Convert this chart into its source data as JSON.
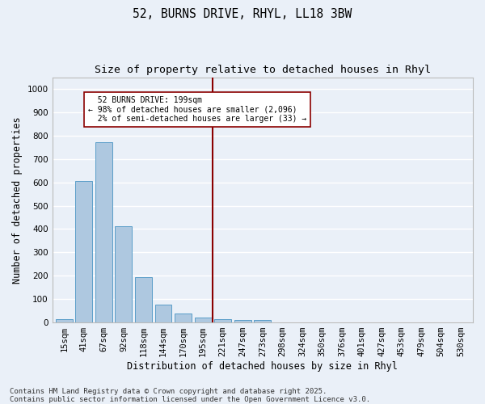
{
  "title_line1": "52, BURNS DRIVE, RHYL, LL18 3BW",
  "title_line2": "Size of property relative to detached houses in Rhyl",
  "xlabel": "Distribution of detached houses by size in Rhyl",
  "ylabel": "Number of detached properties",
  "bar_labels": [
    "15sqm",
    "41sqm",
    "67sqm",
    "92sqm",
    "118sqm",
    "144sqm",
    "170sqm",
    "195sqm",
    "221sqm",
    "247sqm",
    "273sqm",
    "298sqm",
    "324sqm",
    "350sqm",
    "376sqm",
    "401sqm",
    "427sqm",
    "453sqm",
    "479sqm",
    "504sqm",
    "530sqm"
  ],
  "bar_values": [
    15,
    605,
    770,
    413,
    193,
    77,
    40,
    20,
    15,
    12,
    12,
    0,
    0,
    0,
    0,
    0,
    0,
    0,
    0,
    0,
    0
  ],
  "bar_color": "#aec8e0",
  "bar_edgecolor": "#5a9ec8",
  "background_color": "#eaf0f8",
  "grid_color": "#ffffff",
  "vline_x": 7.5,
  "vline_color": "#8b0000",
  "annotation_text": "  52 BURNS DRIVE: 199sqm\n← 98% of detached houses are smaller (2,096)\n  2% of semi-detached houses are larger (33) →",
  "annotation_box_color": "#ffffff",
  "annotation_box_edgecolor": "#8b0000",
  "ylim": [
    0,
    1050
  ],
  "yticks": [
    0,
    100,
    200,
    300,
    400,
    500,
    600,
    700,
    800,
    900,
    1000
  ],
  "footer_text": "Contains HM Land Registry data © Crown copyright and database right 2025.\nContains public sector information licensed under the Open Government Licence v3.0.",
  "title_fontsize": 10.5,
  "subtitle_fontsize": 9.5,
  "axis_label_fontsize": 8.5,
  "tick_fontsize": 7.5,
  "footer_fontsize": 6.5,
  "fig_facecolor": "#eaf0f8"
}
